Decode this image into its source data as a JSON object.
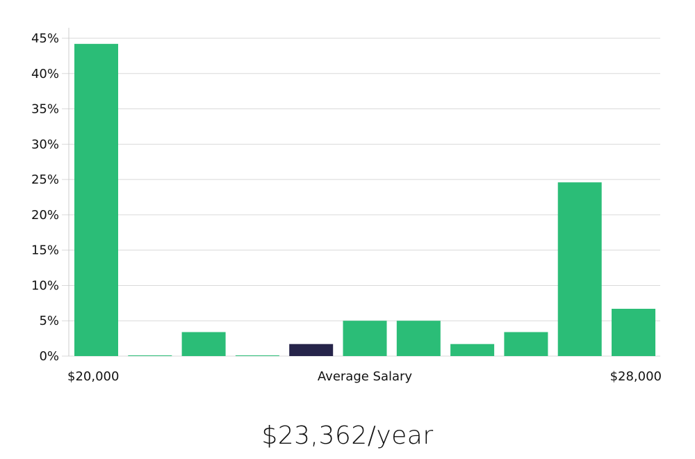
{
  "chart_data": {
    "type": "bar",
    "xlabel": "Average Salary",
    "x_range_labels": [
      "$20,000",
      "$28,000"
    ],
    "yticks": [
      "0%",
      "5%",
      "10%",
      "15%",
      "20%",
      "25%",
      "30%",
      "35%",
      "40%",
      "45%"
    ],
    "ylim": [
      0,
      45
    ],
    "values": [
      44.2,
      0.1,
      3.4,
      0.1,
      1.7,
      5.0,
      5.0,
      1.7,
      3.4,
      24.6,
      6.7
    ],
    "highlight_index": 4,
    "grid": true,
    "colors": {
      "bar": "#2bbd77",
      "highlight": "#26244a"
    }
  },
  "summary": {
    "salary_text": "$23,362/year"
  }
}
